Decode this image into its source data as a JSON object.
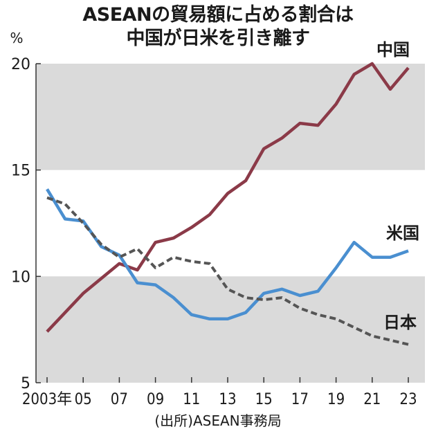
{
  "title_line1": "ASEANの貿易額に占める割合は",
  "title_line2": "中国が日米を引き離す",
  "source": "(出所)ASEAN事務局",
  "chart_data": {
    "type": "line",
    "y_unit": "%",
    "ylim": [
      5,
      20
    ],
    "yticks": [
      "5",
      "10",
      "15",
      "20"
    ],
    "shaded_bands": [
      [
        5,
        10
      ],
      [
        15,
        20
      ]
    ],
    "x": [
      2003,
      2004,
      2005,
      2006,
      2007,
      2008,
      2009,
      2010,
      2011,
      2012,
      2013,
      2014,
      2015,
      2016,
      2017,
      2018,
      2019,
      2020,
      2021,
      2022,
      2023
    ],
    "xtick_labels": [
      {
        "x": 2003,
        "label": "2003年"
      },
      {
        "x": 2005,
        "label": "05"
      },
      {
        "x": 2007,
        "label": "07"
      },
      {
        "x": 2009,
        "label": "09"
      },
      {
        "x": 2011,
        "label": "11"
      },
      {
        "x": 2013,
        "label": "13"
      },
      {
        "x": 2015,
        "label": "15"
      },
      {
        "x": 2017,
        "label": "17"
      },
      {
        "x": 2019,
        "label": "19"
      },
      {
        "x": 2021,
        "label": "21"
      },
      {
        "x": 2023,
        "label": "23"
      }
    ],
    "series": [
      {
        "name": "中国",
        "color": "#8b3a48",
        "dash": false,
        "values": [
          7.4,
          8.3,
          9.2,
          9.9,
          10.6,
          10.3,
          11.6,
          11.8,
          12.3,
          12.9,
          13.9,
          14.5,
          16.0,
          16.5,
          17.2,
          17.1,
          18.1,
          19.5,
          20.0,
          18.8,
          19.8
        ]
      },
      {
        "name": "米国",
        "color": "#4a8fd0",
        "dash": false,
        "values": [
          14.1,
          12.7,
          12.6,
          11.4,
          11.0,
          9.7,
          9.6,
          9.0,
          8.2,
          8.0,
          8.0,
          8.3,
          9.2,
          9.4,
          9.1,
          9.3,
          10.4,
          11.6,
          10.9,
          10.9,
          11.2
        ]
      },
      {
        "name": "日本",
        "color": "#555555",
        "dash": true,
        "values": [
          13.7,
          13.4,
          12.5,
          11.5,
          10.9,
          11.3,
          10.4,
          10.9,
          10.7,
          10.6,
          9.4,
          9.0,
          8.9,
          9.0,
          8.5,
          8.2,
          8.0,
          7.6,
          7.2,
          7.0,
          6.8
        ]
      }
    ]
  }
}
